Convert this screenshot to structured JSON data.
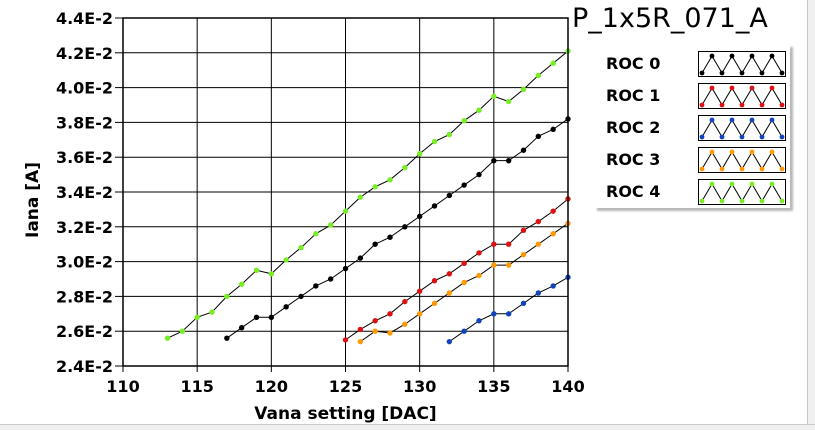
{
  "title": "P_1x5R_071_A",
  "chart_data": {
    "type": "line",
    "xlabel": "Vana setting [DAC]",
    "ylabel": "Iana [A]",
    "xlim": [
      110,
      140
    ],
    "ylim": [
      0.024,
      0.044
    ],
    "xticks": [
      110,
      115,
      120,
      125,
      130,
      135,
      140
    ],
    "xtick_labels": [
      "110",
      "115",
      "120",
      "125",
      "130",
      "135",
      "140"
    ],
    "yticks": [
      0.024,
      0.026,
      0.028,
      0.03,
      0.032,
      0.034,
      0.036,
      0.038,
      0.04,
      0.042,
      0.044
    ],
    "ytick_labels": [
      "2.4E-2",
      "2.6E-2",
      "2.8E-2",
      "3.0E-2",
      "3.2E-2",
      "3.4E-2",
      "3.6E-2",
      "3.8E-2",
      "4.0E-2",
      "4.2E-2",
      "4.4E-2"
    ],
    "grid": true,
    "legend_position": "right",
    "series": [
      {
        "name": "ROC 0",
        "color": "#000000",
        "x": [
          117,
          118,
          119,
          120,
          121,
          122,
          123,
          124,
          125,
          126,
          127,
          128,
          129,
          130,
          131,
          132,
          133,
          134,
          135,
          136,
          137,
          138,
          139,
          140
        ],
        "y": [
          0.0256,
          0.0262,
          0.0268,
          0.0268,
          0.0274,
          0.028,
          0.0286,
          0.029,
          0.0296,
          0.0302,
          0.031,
          0.0314,
          0.032,
          0.0326,
          0.0332,
          0.0338,
          0.0344,
          0.035,
          0.0358,
          0.0358,
          0.0364,
          0.0372,
          0.0376,
          0.0382
        ]
      },
      {
        "name": "ROC 1",
        "color": "#dd1111",
        "x": [
          125,
          126,
          127,
          128,
          129,
          130,
          131,
          132,
          133,
          134,
          135,
          136,
          137,
          138,
          139,
          140
        ],
        "y": [
          0.0255,
          0.0261,
          0.0266,
          0.027,
          0.0277,
          0.0283,
          0.0289,
          0.0293,
          0.0299,
          0.0305,
          0.031,
          0.031,
          0.0318,
          0.0323,
          0.0329,
          0.0336
        ]
      },
      {
        "name": "ROC 2",
        "color": "#1144bb",
        "x": [
          132,
          133,
          134,
          135,
          136,
          137,
          138,
          139,
          140
        ],
        "y": [
          0.0254,
          0.026,
          0.0266,
          0.027,
          0.027,
          0.0276,
          0.0282,
          0.0286,
          0.0291
        ]
      },
      {
        "name": "ROC 3",
        "color": "#ff9900",
        "x": [
          126,
          127,
          128,
          129,
          130,
          131,
          132,
          133,
          134,
          135,
          136,
          137,
          138,
          139,
          140
        ],
        "y": [
          0.0254,
          0.026,
          0.0259,
          0.0264,
          0.027,
          0.0276,
          0.0282,
          0.0288,
          0.0292,
          0.0298,
          0.0298,
          0.0304,
          0.031,
          0.0316,
          0.0322
        ]
      },
      {
        "name": "ROC 4",
        "color": "#77ee22",
        "x": [
          113,
          114,
          115,
          116,
          117,
          118,
          119,
          120,
          121,
          122,
          123,
          124,
          125,
          126,
          127,
          128,
          129,
          130,
          131,
          132,
          133,
          134,
          135,
          136,
          137,
          138,
          139,
          140
        ],
        "y": [
          0.0256,
          0.026,
          0.0268,
          0.0271,
          0.028,
          0.0287,
          0.0295,
          0.0293,
          0.0301,
          0.0308,
          0.0316,
          0.0321,
          0.0329,
          0.0337,
          0.0343,
          0.0347,
          0.0354,
          0.0362,
          0.0369,
          0.0373,
          0.0381,
          0.0387,
          0.0395,
          0.0392,
          0.0399,
          0.0407,
          0.0414,
          0.0421
        ]
      }
    ]
  }
}
